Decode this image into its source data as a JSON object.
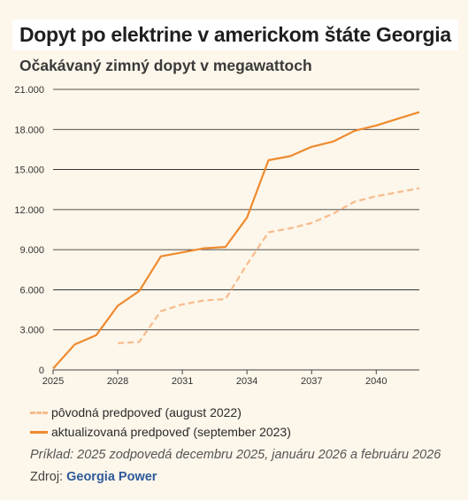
{
  "header": {
    "title": "Dopyt po elektrine v americkom štáte Georgia",
    "subtitle": "Očakávaný zimný dopyt v megawattoch"
  },
  "footer": {
    "note": "Príklad: 2025 zodpovedá decembru 2025, januáru 2026 a februáru 2026",
    "source_label": "Zdroj:",
    "source_name": "Georgia Power"
  },
  "colors": {
    "original": "#f7bb8d",
    "updated": "#ee8a2e",
    "background": "#fdf6ea"
  },
  "chart_data": {
    "type": "line",
    "title": "Dopyt po elektrine v americkom štáte Georgia",
    "subtitle": "Očakávaný zimný dopyt v megawattoch",
    "xlabel": "",
    "ylabel": "",
    "xlim": [
      2025,
      2042
    ],
    "ylim": [
      0,
      21000
    ],
    "x_ticks": [
      2025,
      2028,
      2031,
      2034,
      2037,
      2040
    ],
    "x_tick_labels": [
      "2025",
      "2028",
      "2031",
      "2034",
      "2037",
      "2040"
    ],
    "y_ticks": [
      0,
      3000,
      6000,
      9000,
      12000,
      15000,
      18000,
      21000
    ],
    "y_tick_labels": [
      "0",
      "3.000",
      "6.000",
      "9.000",
      "12.000",
      "15.000",
      "18.000",
      "21.000"
    ],
    "grid": "horizontal",
    "legend_position": "bottom-left",
    "series": [
      {
        "name": "pôvodná predpoveď (august 2022)",
        "style": "dashed",
        "color": "#f7bb8d",
        "x": [
          2028,
          2029,
          2030,
          2031,
          2032,
          2033,
          2034,
          2035,
          2036,
          2037,
          2038,
          2039,
          2040,
          2041,
          2042
        ],
        "y": [
          2000,
          2100,
          4400,
          4900,
          5200,
          5300,
          7900,
          10300,
          10600,
          11000,
          11700,
          12600,
          13000,
          13300,
          13600
        ]
      },
      {
        "name": "aktualizovaná predpoveď (september 2023)",
        "style": "solid",
        "color": "#ee8a2e",
        "x": [
          2025,
          2026,
          2027,
          2028,
          2029,
          2030,
          2031,
          2032,
          2033,
          2034,
          2035,
          2036,
          2037,
          2038,
          2039,
          2040,
          2041,
          2042
        ],
        "y": [
          100,
          1900,
          2600,
          4800,
          5900,
          8500,
          8800,
          9100,
          9200,
          11400,
          15700,
          16000,
          16700,
          17100,
          17900,
          18300,
          18800,
          19300
        ]
      }
    ]
  }
}
